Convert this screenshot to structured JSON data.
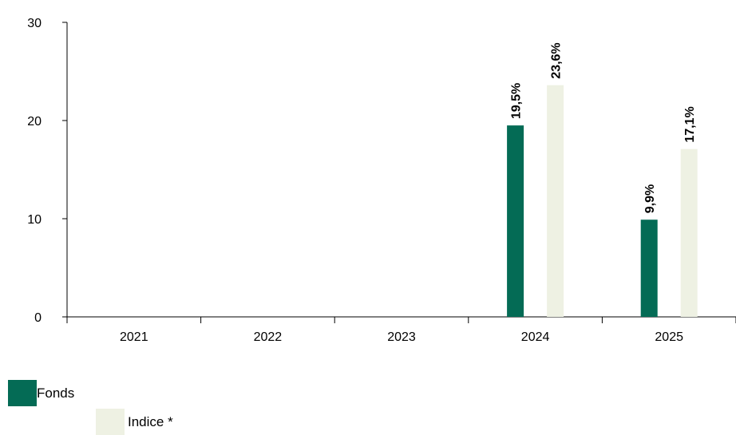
{
  "chart_data": {
    "type": "bar",
    "categories": [
      "2021",
      "2022",
      "2023",
      "2024",
      "2025"
    ],
    "series": [
      {
        "name": "Fonds",
        "color": "#046b55",
        "values": [
          null,
          null,
          null,
          19.5,
          9.9
        ],
        "labels": [
          null,
          null,
          null,
          "19,5%",
          "9,9%"
        ]
      },
      {
        "name": "Indice *",
        "color": "#eef1e3",
        "values": [
          null,
          null,
          null,
          23.6,
          17.1
        ],
        "labels": [
          null,
          null,
          null,
          "23,6%",
          "17,1%"
        ]
      }
    ],
    "yticks": [
      "0",
      "10",
      "20",
      "30"
    ],
    "ylim": [
      0,
      30
    ],
    "title": "",
    "xlabel": "",
    "ylabel": "",
    "grid": false,
    "legend_position": "bottom-left"
  },
  "legend": {
    "fonds_label": "Fonds",
    "indice_label": "Indice *"
  }
}
